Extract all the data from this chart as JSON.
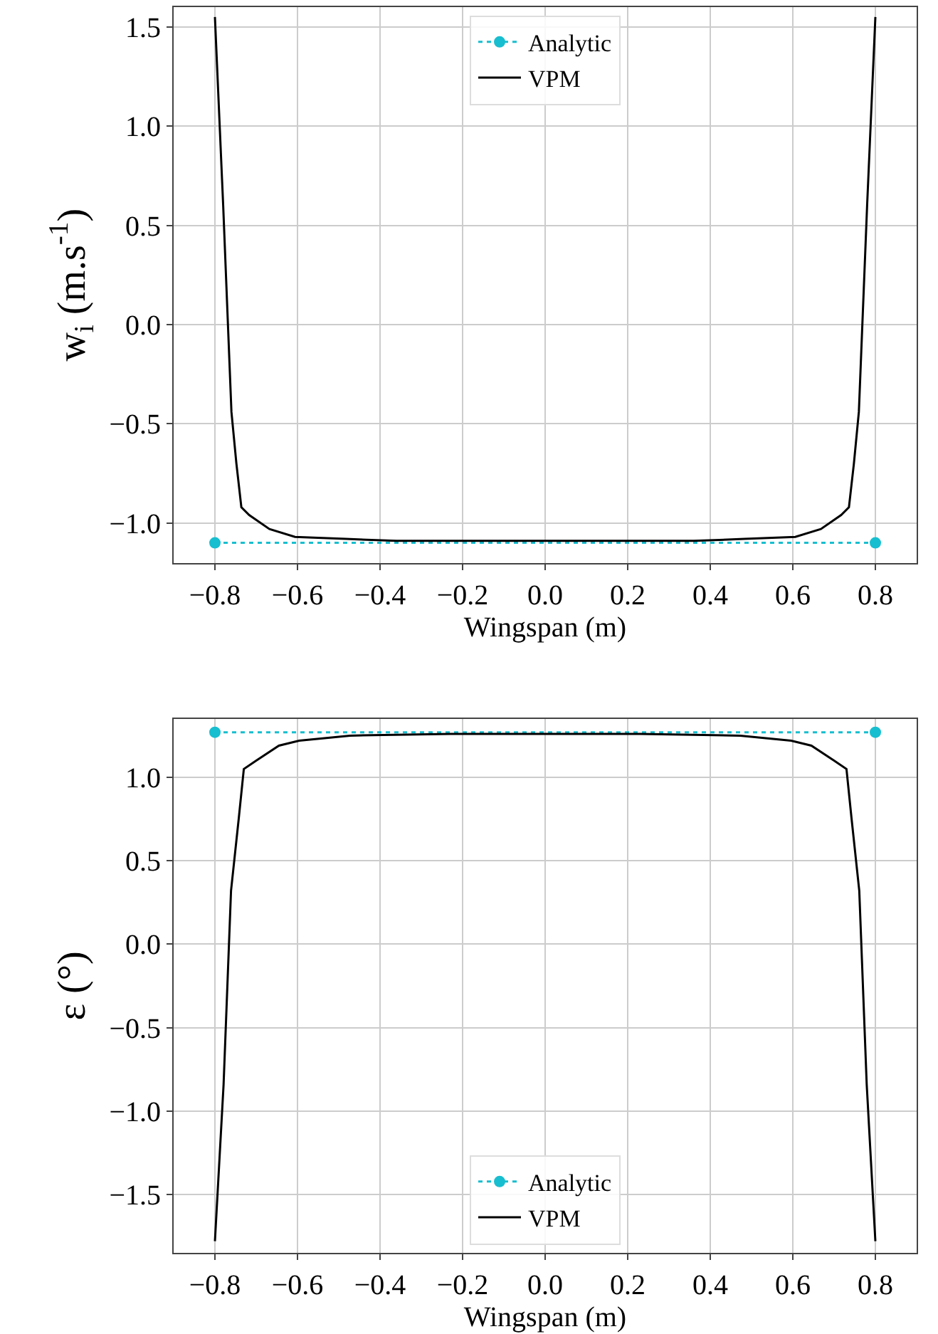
{
  "chart_data": [
    {
      "type": "line",
      "xlabel": "Wingspan (m)",
      "ylabel": "w$_{i}$ (m.s$^{-1}$)",
      "xlim": [
        -0.9,
        0.9
      ],
      "xticks": [
        {
          "value": -0.8,
          "label": "−0.8"
        },
        {
          "value": -0.6,
          "label": "−0.6"
        },
        {
          "value": -0.4,
          "label": "−0.4"
        },
        {
          "value": -0.2,
          "label": "−0.2"
        },
        {
          "value": 0,
          "label": "0.0"
        },
        {
          "value": 0.2,
          "label": "0.2"
        },
        {
          "value": 0.4,
          "label": "0.4"
        },
        {
          "value": 0.6,
          "label": "0.6"
        },
        {
          "value": 0.8,
          "label": "0.8"
        }
      ],
      "ylim": [
        -1.2,
        1.6
      ],
      "yticks": [
        {
          "value": -1.0,
          "label": "−1.0"
        },
        {
          "value": -0.5,
          "label": "−0.5"
        },
        {
          "value": 0,
          "label": "0.0"
        },
        {
          "value": 0.5,
          "label": "0.5"
        },
        {
          "value": 1.0,
          "label": "1.0"
        },
        {
          "value": 1.5,
          "label": "1.5"
        }
      ],
      "grid": true,
      "legend": "top",
      "series": [
        {
          "name": "Analytic",
          "color": "#17becf",
          "marker": "circle",
          "line_style": "dotted",
          "x": [
            -0.8,
            0.8
          ],
          "values": [
            -1.1,
            -1.1
          ]
        },
        {
          "name": "VPM",
          "color": "#000000",
          "marker": "none",
          "line_style": "solid",
          "x": [
            -0.8,
            -0.78,
            -0.76,
            -0.748,
            -0.736,
            -0.717,
            -0.668,
            -0.606,
            -0.483,
            -0.36,
            -0.2,
            0,
            0.2,
            0.36,
            0.483,
            0.606,
            0.668,
            0.717,
            0.736,
            0.748,
            0.76,
            0.78,
            0.8
          ],
          "values": [
            1.55,
            0.6,
            -0.44,
            -0.7,
            -0.92,
            -0.96,
            -1.03,
            -1.07,
            -1.08,
            -1.09,
            -1.09,
            -1.09,
            -1.09,
            -1.09,
            -1.08,
            -1.07,
            -1.03,
            -0.96,
            -0.92,
            -0.7,
            -0.44,
            0.6,
            1.55
          ]
        }
      ]
    },
    {
      "type": "line",
      "xlabel": "Wingspan (m)",
      "ylabel": "ε (°)",
      "xlim": [
        -0.9,
        0.9
      ],
      "xticks": [
        {
          "value": -0.8,
          "label": "−0.8"
        },
        {
          "value": -0.6,
          "label": "−0.6"
        },
        {
          "value": -0.4,
          "label": "−0.4"
        },
        {
          "value": -0.2,
          "label": "−0.2"
        },
        {
          "value": 0,
          "label": "0.0"
        },
        {
          "value": 0.2,
          "label": "0.2"
        },
        {
          "value": 0.4,
          "label": "0.4"
        },
        {
          "value": 0.6,
          "label": "0.6"
        },
        {
          "value": 0.8,
          "label": "0.8"
        }
      ],
      "ylim": [
        -1.85,
        1.35
      ],
      "yticks": [
        {
          "value": -1.5,
          "label": "−1.5"
        },
        {
          "value": -1.0,
          "label": "−1.0"
        },
        {
          "value": -0.5,
          "label": "−0.5"
        },
        {
          "value": 0,
          "label": "0.0"
        },
        {
          "value": 0.5,
          "label": "0.5"
        },
        {
          "value": 1.0,
          "label": "1.0"
        }
      ],
      "grid": true,
      "legend": "bottom",
      "series": [
        {
          "name": "Analytic",
          "color": "#17becf",
          "marker": "circle",
          "line_style": "dotted",
          "x": [
            -0.8,
            0.8
          ],
          "values": [
            1.27,
            1.27
          ]
        },
        {
          "name": "VPM",
          "color": "#000000",
          "marker": "none",
          "line_style": "solid",
          "x": [
            -0.8,
            -0.779,
            -0.761,
            -0.742,
            -0.73,
            -0.7,
            -0.645,
            -0.596,
            -0.473,
            -0.23,
            0,
            0.23,
            0.473,
            0.596,
            0.645,
            0.7,
            0.73,
            0.742,
            0.761,
            0.779,
            0.8
          ],
          "values": [
            -1.78,
            -0.84,
            0.32,
            0.76,
            1.05,
            1.1,
            1.19,
            1.22,
            1.25,
            1.26,
            1.26,
            1.26,
            1.25,
            1.22,
            1.19,
            1.1,
            1.05,
            0.76,
            0.32,
            -0.84,
            -1.78
          ]
        }
      ]
    }
  ]
}
